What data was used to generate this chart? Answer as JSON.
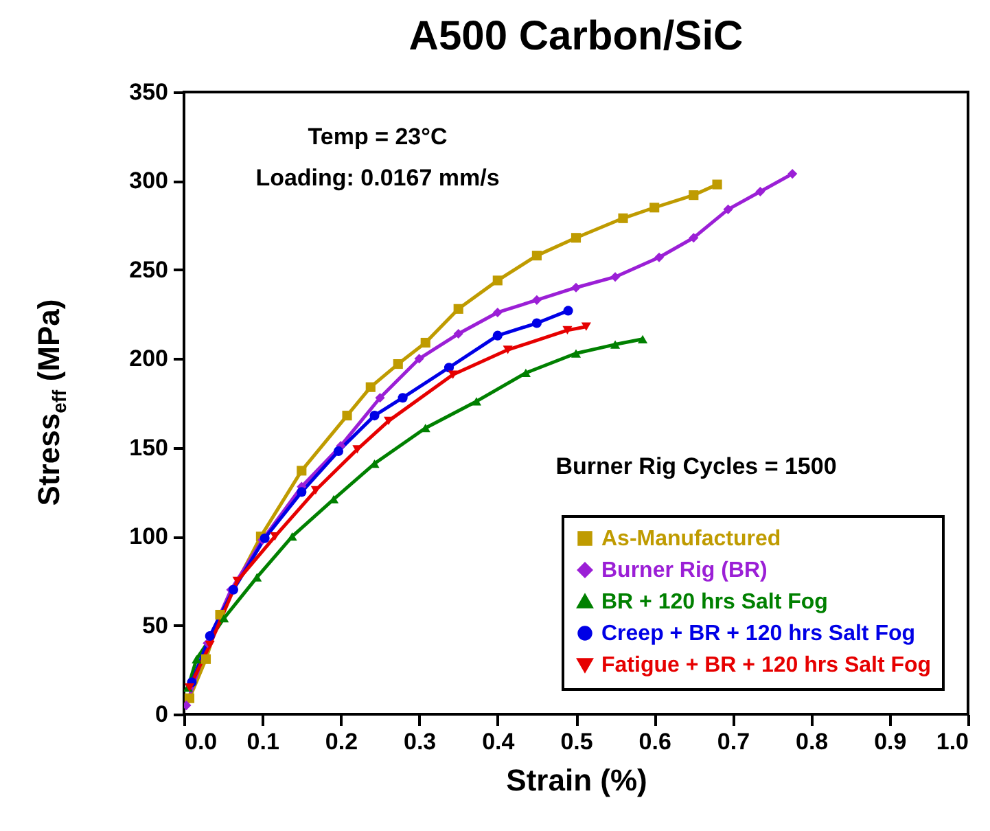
{
  "chart_data": {
    "type": "line",
    "title": "A500 Carbon/SiC",
    "xlabel": "Strain (%)",
    "ylabel": "Stress$_{eff}$ (MPa)",
    "annotations": [
      "Temp = 23°C",
      "Loading:  0.0167 mm/s",
      "Burner Rig Cycles = 1500"
    ],
    "xlim": [
      0,
      1
    ],
    "xticks": [
      {
        "value": 0,
        "label": "0.0"
      },
      0.1,
      0.2,
      0.3,
      0.4,
      0.5,
      0.6,
      0.7,
      0.8,
      0.9,
      {
        "value": 1,
        "label": "1.0"
      }
    ],
    "ylim": [
      0,
      350
    ],
    "yticks": [
      0,
      50,
      100,
      150,
      200,
      250,
      300,
      350
    ],
    "grid": false,
    "legend": "bottom right",
    "series": [
      {
        "name": "As-Manufactured",
        "color": "#bf9b00",
        "marker": "square",
        "x": [
          0.007,
          0.028,
          0.046,
          0.098,
          0.15,
          0.208,
          0.238,
          0.273,
          0.308,
          0.35,
          0.4,
          0.45,
          0.5,
          0.56,
          0.6,
          0.65,
          0.68
        ],
        "values": [
          9,
          31,
          56,
          100,
          137,
          168,
          184,
          197,
          209,
          228,
          244,
          258,
          268,
          279,
          285,
          292,
          298
        ]
      },
      {
        "name": "Burner Rig (BR)",
        "color": "#9b1fd6",
        "marker": "diamond",
        "x": [
          0.003,
          0.03,
          0.06,
          0.1,
          0.15,
          0.2,
          0.25,
          0.3,
          0.35,
          0.4,
          0.45,
          0.5,
          0.55,
          0.606,
          0.65,
          0.694,
          0.735,
          0.776
        ],
        "values": [
          5,
          40,
          70,
          98,
          128,
          151,
          178,
          200,
          214,
          226,
          233,
          240,
          246,
          257,
          268,
          284,
          294,
          304
        ]
      },
      {
        "name": "BR + 120 hrs Salt Fog",
        "color": "#008000",
        "marker": "triangle",
        "x": [
          0.005,
          0.016,
          0.051,
          0.093,
          0.138,
          0.191,
          0.243,
          0.308,
          0.373,
          0.436,
          0.5,
          0.55,
          0.585
        ],
        "values": [
          15,
          31,
          54,
          77,
          100,
          121,
          141,
          161,
          176,
          192,
          203,
          208,
          211
        ]
      },
      {
        "name": "Creep + BR + 120 hrs Salt Fog",
        "color": "#0000e6",
        "marker": "circle",
        "x": [
          0.01,
          0.033,
          0.063,
          0.103,
          0.15,
          0.197,
          0.243,
          0.279,
          0.338,
          0.4,
          0.45,
          0.49
        ],
        "values": [
          18,
          44,
          70,
          99,
          125,
          148,
          168,
          178,
          195,
          213,
          220,
          227
        ]
      },
      {
        "name": "Fatigue + BR + 120 hrs Salt Fog",
        "color": "#e60000",
        "marker": "triangle-down",
        "x": [
          0.007,
          0.033,
          0.068,
          0.116,
          0.168,
          0.221,
          0.261,
          0.343,
          0.413,
          0.489,
          0.513
        ],
        "values": [
          15,
          39,
          75,
          100,
          126,
          149,
          165,
          191,
          205,
          216,
          218
        ]
      }
    ]
  }
}
